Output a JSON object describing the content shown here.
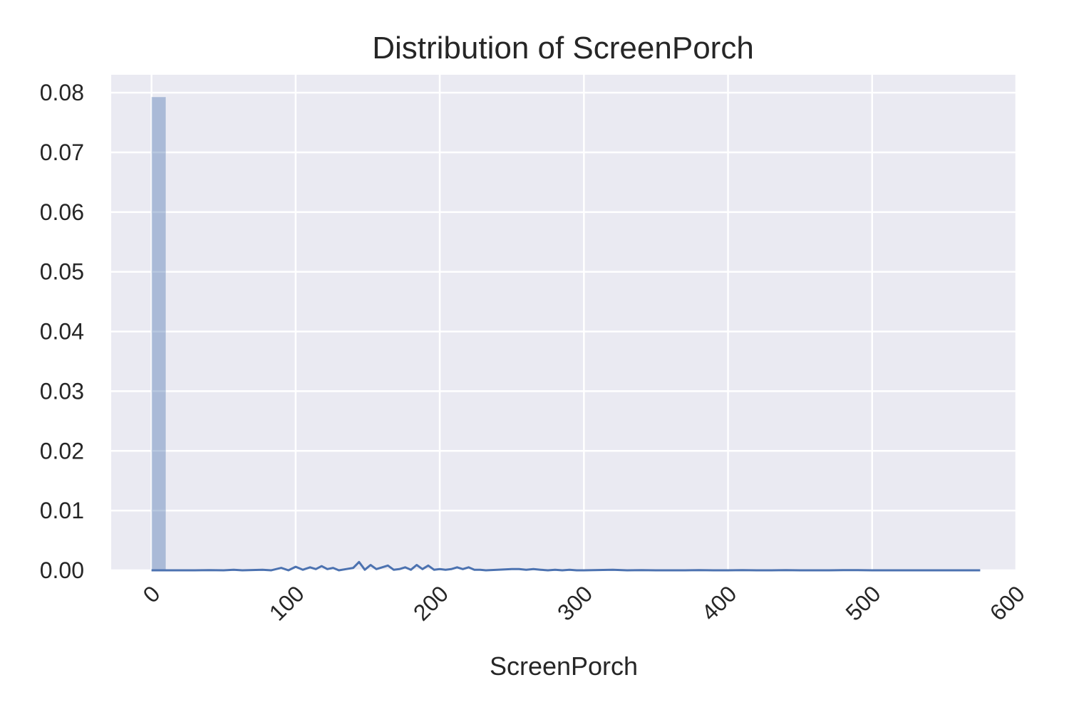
{
  "chart_data": {
    "type": "histogram",
    "title": "Distribution of ScreenPorch",
    "xlabel": "ScreenPorch",
    "ylabel": "",
    "xlim": [
      -28,
      600
    ],
    "ylim": [
      0,
      0.083
    ],
    "xticks": [
      0,
      100,
      200,
      300,
      400,
      500,
      600
    ],
    "xtick_labels": [
      "0",
      "100",
      "200",
      "300",
      "400",
      "500",
      "600"
    ],
    "xtick_rotation": 45,
    "yticks": [
      0,
      0.01,
      0.02,
      0.03,
      0.04,
      0.05,
      0.06,
      0.07,
      0.08
    ],
    "ytick_labels": [
      "0.00",
      "0.01",
      "0.02",
      "0.03",
      "0.04",
      "0.05",
      "0.06",
      "0.07",
      "0.08"
    ],
    "grid": true,
    "background": "#eaeaf2",
    "grid_color": "#ffffff",
    "bar_color": "#4c72b0",
    "bar_opacity": 0.4,
    "line_color": "#4c72b0",
    "bars": [
      {
        "x0": 0,
        "x1": 10,
        "value": 0.0793
      }
    ],
    "kde": {
      "x": [
        0,
        10,
        20,
        30,
        40,
        50,
        57,
        63,
        70,
        77,
        83,
        90,
        95,
        100,
        105,
        110,
        114,
        118,
        122,
        126,
        130,
        135,
        140,
        144,
        148,
        152,
        156,
        160,
        164,
        168,
        172,
        176,
        180,
        184,
        188,
        192,
        196,
        200,
        204,
        208,
        212,
        216,
        220,
        224,
        228,
        232,
        240,
        250,
        255,
        260,
        265,
        270,
        275,
        280,
        285,
        290,
        295,
        300,
        310,
        320,
        330,
        340,
        350,
        360,
        370,
        380,
        390,
        400,
        410,
        420,
        430,
        440,
        450,
        460,
        470,
        480,
        490,
        500,
        520,
        540,
        560,
        575
      ],
      "y": [
        0,
        0,
        0,
        0,
        4e-05,
        0,
        0.0001,
        0,
        5e-05,
        0.0001,
        0,
        0.0004,
        0,
        0.0006,
        0.0001,
        0.0005,
        0.0002,
        0.0007,
        0.0002,
        0.0004,
        0,
        0.0002,
        0.0004,
        0.0014,
        0.0001,
        0.0009,
        0.0002,
        0.0005,
        0.0008,
        0.0001,
        0.0002,
        0.0005,
        0.0001,
        0.0009,
        0.0002,
        0.0008,
        0.0001,
        0.0002,
        0.0001,
        0.0002,
        0.0005,
        0.0002,
        0.0005,
        0.0001,
        0.0001,
        0,
        0.0001,
        0.0002,
        0.0002,
        0.0001,
        0.0002,
        0.0001,
        0,
        0.0001,
        0,
        0.0001,
        0,
        0,
        5e-05,
        0.0001,
        0,
        4e-05,
        0,
        0,
        0,
        4e-05,
        0,
        0,
        3e-05,
        0,
        0,
        4e-05,
        0,
        0,
        0,
        3e-05,
        4e-05,
        0,
        0,
        0,
        0,
        0
      ]
    }
  }
}
